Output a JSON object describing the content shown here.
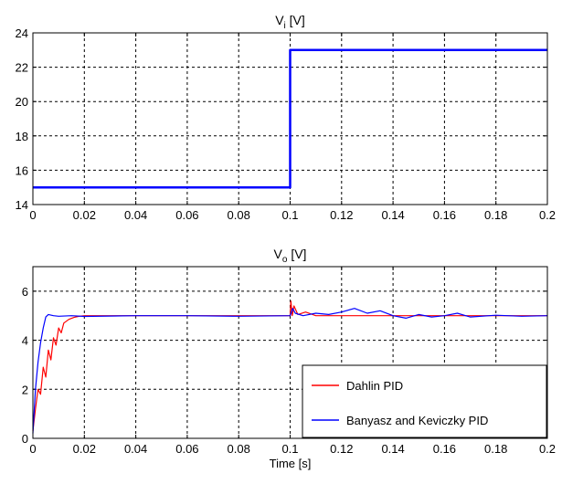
{
  "chart_data": [
    {
      "type": "line",
      "title_main": "V",
      "title_sub": "i",
      "title_unit": " [V]",
      "xlabel": "",
      "ylabel": "",
      "xlim": [
        0,
        0.2
      ],
      "ylim": [
        14,
        24
      ],
      "xticks": [
        "0",
        "0.02",
        "0.04",
        "0.06",
        "0.08",
        "0.1",
        "0.12",
        "0.14",
        "0.16",
        "0.18",
        "0.2"
      ],
      "yticks": [
        "14",
        "16",
        "18",
        "20",
        "22",
        "24"
      ],
      "grid": true,
      "series": [
        {
          "color": "#0000ff",
          "x": [
            0,
            0.1,
            0.1,
            0.2
          ],
          "y": [
            15,
            15,
            23,
            23
          ]
        }
      ]
    },
    {
      "type": "line",
      "title_main": "V",
      "title_sub": "o",
      "title_unit": " [V]",
      "xlabel": "Time [s]",
      "ylabel": "",
      "xlim": [
        0,
        0.2
      ],
      "ylim": [
        0,
        7
      ],
      "xticks": [
        "0",
        "0.02",
        "0.04",
        "0.06",
        "0.08",
        "0.1",
        "0.12",
        "0.14",
        "0.16",
        "0.18",
        "0.2"
      ],
      "yticks": [
        "0",
        "2",
        "4",
        "6"
      ],
      "grid": true,
      "legend_position": "bottom-right",
      "series": [
        {
          "name": "Dahlin PID",
          "color": "#ff0000",
          "x": [
            0,
            0.001,
            0.002,
            0.003,
            0.004,
            0.005,
            0.006,
            0.007,
            0.008,
            0.009,
            0.01,
            0.011,
            0.012,
            0.014,
            0.016,
            0.018,
            0.02,
            0.1,
            0.1003,
            0.1008,
            0.1015,
            0.103,
            0.106,
            0.11,
            0.12,
            0.2
          ],
          "y": [
            0.3,
            1.2,
            2.0,
            1.8,
            2.9,
            2.5,
            3.6,
            3.2,
            4.1,
            3.8,
            4.5,
            4.3,
            4.7,
            4.85,
            4.93,
            4.98,
            5.0,
            5.0,
            5.6,
            5.0,
            5.4,
            5.05,
            5.15,
            5.0,
            5.0,
            5.0
          ]
        },
        {
          "name": "Banyasz and Keviczky PID",
          "color": "#0000ff",
          "x": [
            0,
            0.001,
            0.002,
            0.003,
            0.004,
            0.005,
            0.006,
            0.008,
            0.01,
            0.015,
            0.02,
            0.04,
            0.06,
            0.08,
            0.1,
            0.101,
            0.102,
            0.105,
            0.11,
            0.115,
            0.12,
            0.125,
            0.13,
            0.135,
            0.14,
            0.145,
            0.15,
            0.155,
            0.16,
            0.165,
            0.17,
            0.18,
            0.19,
            0.2
          ],
          "y": [
            0.2,
            2.0,
            3.1,
            3.9,
            4.5,
            4.95,
            5.05,
            5.0,
            4.98,
            5.0,
            4.97,
            5.0,
            5.0,
            4.98,
            5.0,
            5.3,
            5.1,
            5.0,
            5.1,
            5.05,
            5.15,
            5.3,
            5.1,
            5.2,
            5.0,
            4.9,
            5.05,
            4.95,
            5.0,
            5.1,
            4.95,
            5.02,
            4.98,
            5.0
          ]
        }
      ]
    }
  ]
}
